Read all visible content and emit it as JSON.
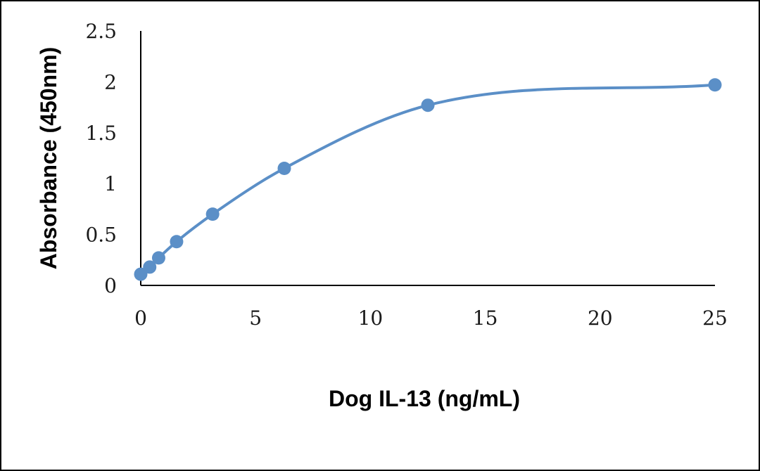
{
  "chart_data": {
    "type": "scatter",
    "title": "",
    "xlabel": "Dog IL-13 (ng/mL)",
    "ylabel": "Absorbance (450nm)",
    "xlim": [
      0,
      25
    ],
    "ylim": [
      0,
      2.5
    ],
    "xticks": [
      "0",
      "5",
      "10",
      "15",
      "20",
      "25"
    ],
    "yticks": [
      "0",
      "0.5",
      "1",
      "1.5",
      "2",
      "2.5"
    ],
    "grid": false,
    "legend": "none",
    "smooth_line": true,
    "series_color": "#5b8fc7",
    "series": [
      {
        "x": [
          0,
          0.39,
          0.78,
          1.56,
          3.13,
          6.25,
          12.5,
          25
        ],
        "y": [
          0.11,
          0.18,
          0.27,
          0.43,
          0.7,
          1.15,
          1.77,
          1.97
        ]
      }
    ]
  }
}
